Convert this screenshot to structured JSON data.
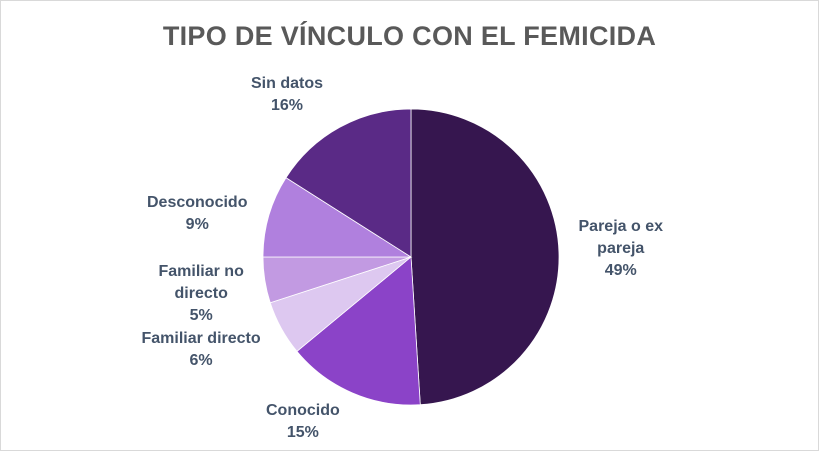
{
  "chart_data": {
    "type": "pie",
    "title": "TIPO DE VÍNCULO CON EL FEMICIDA",
    "slices": [
      {
        "label": "Pareja o ex pareja",
        "label_lines": [
          "Pareja o ex",
          "pareja"
        ],
        "value": 49,
        "value_label": "49%",
        "color": "#36164f"
      },
      {
        "label": "Conocido",
        "label_lines": [
          "Conocido"
        ],
        "value": 15,
        "value_label": "15%",
        "color": "#8b43c8"
      },
      {
        "label": "Familiar directo",
        "label_lines": [
          "Familiar directo"
        ],
        "value": 6,
        "value_label": "6%",
        "color": "#ddc8f0"
      },
      {
        "label": "Familiar no directo",
        "label_lines": [
          "Familiar no",
          "directo"
        ],
        "value": 5,
        "value_label": "5%",
        "color": "#c29ae2"
      },
      {
        "label": "Desconocido",
        "label_lines": [
          "Desconocido"
        ],
        "value": 9,
        "value_label": "9%",
        "color": "#b080de"
      },
      {
        "label": "Sin datos",
        "label_lines": [
          "Sin datos"
        ],
        "value": 16,
        "value_label": "16%",
        "color": "#5a2a86"
      }
    ],
    "start_angle": "12 o'clock",
    "direction": "clockwise",
    "legend": "none",
    "data_labels": "outside"
  }
}
